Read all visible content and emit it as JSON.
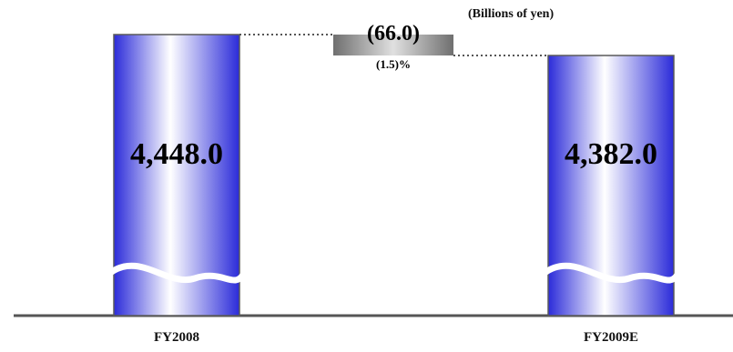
{
  "chart_data": {
    "type": "bar",
    "unit_label": "(Billions of yen)",
    "categories": [
      "FY2008",
      "FY2009E"
    ],
    "values": [
      4448.0,
      4382.0
    ],
    "value_labels": [
      "4,448.0",
      "4,382.0"
    ],
    "change": {
      "value": -66.0,
      "label": "(66.0)",
      "percent_label": "(1.5)%"
    },
    "axis_break": true,
    "colors": {
      "bar_edge": "#2b2bd9",
      "bar_center": "#ffffff",
      "bar_outline": "#5a5a5a",
      "change_box_dark": "#6f6f6f",
      "change_box_light": "#d8d8d8",
      "baseline": "#555555"
    }
  }
}
